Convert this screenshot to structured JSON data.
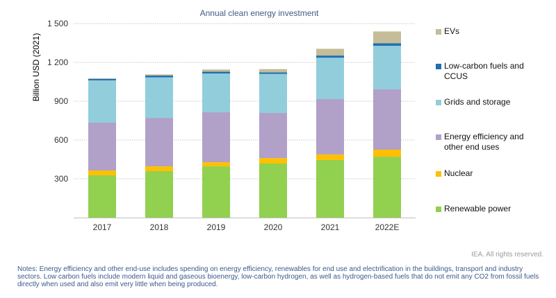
{
  "chart_data": {
    "type": "bar",
    "stacked": true,
    "title": "Annual clean energy investment",
    "xlabel": "",
    "ylabel": "Billion USD (2021)",
    "ylim": [
      0,
      1500
    ],
    "yticks": [
      0,
      300,
      600,
      900,
      1200,
      1500
    ],
    "ytick_labels": [
      "",
      "300",
      "600",
      "900",
      "1 200",
      "1 500"
    ],
    "grid": true,
    "legend_position": "right",
    "categories": [
      "2017",
      "2018",
      "2019",
      "2020",
      "2021",
      "2022E"
    ],
    "series": [
      {
        "name": "Renewable power",
        "color": "#92d050",
        "values": [
          327,
          359,
          396,
          418,
          445,
          471
        ]
      },
      {
        "name": "Nuclear",
        "color": "#ffc000",
        "values": [
          37,
          37,
          32,
          42,
          43,
          54
        ]
      },
      {
        "name": "Energy efficiency and other end uses",
        "color": "#b1a0c7",
        "values": [
          370,
          375,
          386,
          349,
          428,
          466
        ]
      },
      {
        "name": "Grids and storage",
        "color": "#92cddc",
        "values": [
          327,
          313,
          300,
          302,
          320,
          337
        ]
      },
      {
        "name": "Low-carbon fuels and CCUS",
        "color": "#1f6fb2",
        "values": [
          12,
          14,
          14,
          12,
          17,
          20
        ]
      },
      {
        "name": "EVs",
        "color": "#c4bd97",
        "values": [
          3,
          9,
          17,
          25,
          52,
          91
        ]
      }
    ]
  },
  "legend": [
    {
      "label": "EVs",
      "color": "#c4bd97"
    },
    {
      "label": "Low-carbon fuels and CCUS",
      "color": "#1f6fb2"
    },
    {
      "label": "Grids and storage",
      "color": "#92cddc"
    },
    {
      "label": "Energy efficiency and other end uses",
      "color": "#b1a0c7"
    },
    {
      "label": "Nuclear",
      "color": "#ffc000"
    },
    {
      "label": "Renewable power",
      "color": "#92d050"
    }
  ],
  "credit": "IEA. All rights reserved.",
  "notes": "Notes: Energy efficiency and other end-use includes spending on energy efficiency, renewables for end use and electrification in the buildings, transport and industry sectors. Low carbon fuels include modern liquid and gaseous bioenergy, low-carbon hydrogen, as well as hydrogen-based fuels that do not emit any CO2 from fossil fuels directly when used and also emit very little when being produced."
}
